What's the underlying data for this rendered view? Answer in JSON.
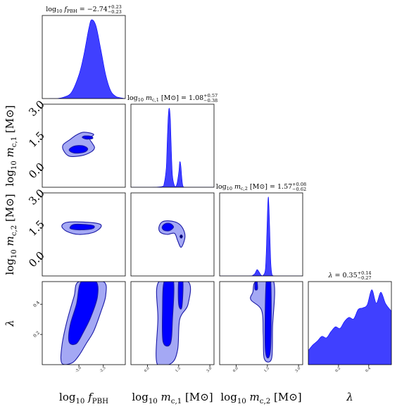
{
  "chart_data": {
    "type": "corner",
    "fill_color": "#0000ff",
    "inner_contour_color": "#0000ff",
    "outer_contour_color": "#a4a8f4",
    "contour_edge_color": "#1a1aa6",
    "parameters": [
      {
        "key": "f",
        "axis_label_base": "log",
        "axis_label_sub": "10",
        "axis_label_sym": "f",
        "axis_label_sym_sub": "PBH",
        "axis_label_unit": ""
      },
      {
        "key": "mc1",
        "axis_label_base": "log",
        "axis_label_sub": "10",
        "axis_label_sym": "m",
        "axis_label_sym_sub": "c,1",
        "axis_label_unit": "[M⊙]"
      },
      {
        "key": "mc2",
        "axis_label_base": "log",
        "axis_label_sub": "10",
        "axis_label_sym": "m",
        "axis_label_sym_sub": "c,2",
        "axis_label_unit": "[M⊙]"
      },
      {
        "key": "lam",
        "axis_label_base": "",
        "axis_label_sub": "",
        "axis_label_sym": "λ",
        "axis_label_sym_sub": "",
        "axis_label_unit": ""
      }
    ],
    "titles": [
      {
        "lhs": "log10 fPBH",
        "median": "−2.74",
        "plus": "+0.23",
        "minus": "−0.23"
      },
      {
        "lhs": "log10 mc,1 [M⊙]",
        "median": "1.08",
        "plus": "+0.57",
        "minus": "−0.38"
      },
      {
        "lhs": "log10 mc,2 [M⊙]",
        "median": "1.57",
        "plus": "+0.08",
        "minus": "−0.62"
      },
      {
        "lhs": "λ",
        "median": "0.35",
        "plus": "+0.14",
        "minus": "−0.27"
      }
    ],
    "y_tick_labels_mass": [
      "3.0",
      "1.5",
      "0.0"
    ],
    "lambda_y_tick_labels": [
      "0.4",
      "0.2"
    ],
    "x_tick_labels": {
      "f": [
        "-3.0",
        "-2.5"
      ],
      "mc1": [
        "0.0",
        "1.5",
        "3.0"
      ],
      "mc2": [
        "0.0",
        "1.5",
        "3.0"
      ],
      "lam": [
        "0.2",
        "0.4"
      ]
    },
    "ranges": {
      "f": [
        -3.75,
        -2.05
      ],
      "mc1": [
        -0.8,
        3.2
      ],
      "mc2": [
        -0.8,
        3.2
      ],
      "lam": [
        0.0,
        0.55
      ]
    },
    "marginal_f": {
      "x": [
        -3.6,
        -3.45,
        -3.3,
        -3.15,
        -3.0,
        -2.9,
        -2.8,
        -2.74,
        -2.65,
        -2.55,
        -2.45,
        -2.35,
        -2.25,
        -2.15,
        -2.05
      ],
      "y": [
        0.0,
        0.0,
        0.02,
        0.08,
        0.3,
        0.55,
        0.88,
        1.0,
        0.92,
        0.62,
        0.3,
        0.1,
        0.03,
        0.01,
        0.0
      ]
    },
    "marginal_mc1": {
      "x": [
        -0.8,
        0.2,
        0.7,
        0.8,
        0.9,
        0.95,
        1.0,
        1.05,
        1.1,
        1.15,
        1.2,
        1.3,
        1.4,
        1.5,
        1.55,
        1.6,
        1.65,
        1.7,
        1.8,
        2.2,
        3.2
      ],
      "y": [
        0.0,
        0.0,
        0.01,
        0.05,
        0.25,
        0.6,
        0.92,
        1.0,
        0.85,
        0.45,
        0.15,
        0.02,
        0.03,
        0.18,
        0.32,
        0.28,
        0.12,
        0.02,
        0.0,
        0.0,
        0.0
      ]
    },
    "marginal_mc2": {
      "x": [
        -0.8,
        0.6,
        0.8,
        0.9,
        1.0,
        1.1,
        1.2,
        1.3,
        1.4,
        1.45,
        1.5,
        1.55,
        1.6,
        1.65,
        1.7,
        1.8,
        2.2,
        3.2
      ],
      "y": [
        0.0,
        0.0,
        0.01,
        0.03,
        0.08,
        0.05,
        0.01,
        0.01,
        0.08,
        0.35,
        0.8,
        1.0,
        0.7,
        0.25,
        0.05,
        0.0,
        0.0,
        0.0
      ]
    },
    "marginal_lam": {
      "x": [
        0.0,
        0.03,
        0.06,
        0.09,
        0.12,
        0.15,
        0.18,
        0.21,
        0.24,
        0.27,
        0.3,
        0.33,
        0.36,
        0.39,
        0.42,
        0.45,
        0.48,
        0.51,
        0.54,
        0.55
      ],
      "y": [
        0.18,
        0.25,
        0.3,
        0.36,
        0.34,
        0.42,
        0.48,
        0.46,
        0.55,
        0.6,
        0.58,
        0.7,
        0.72,
        0.76,
        0.95,
        0.78,
        0.92,
        0.78,
        0.7,
        0.68
      ]
    },
    "contours": {
      "mc1_vs_f": [
        {
          "level": "outer",
          "points": [
            [
              -3.32,
              1.0
            ],
            [
              -3.2,
              0.7
            ],
            [
              -2.95,
              0.72
            ],
            [
              -2.75,
              0.9
            ],
            [
              -2.68,
              1.1
            ],
            [
              -2.72,
              1.3
            ],
            [
              -2.78,
              1.55
            ],
            [
              -2.7,
              1.75
            ],
            [
              -2.9,
              1.85
            ],
            [
              -3.05,
              1.72
            ],
            [
              -3.18,
              1.5
            ],
            [
              -3.32,
              1.25
            ]
          ]
        },
        {
          "level": "inner",
          "points": [
            [
              -3.2,
              1.0
            ],
            [
              -3.1,
              0.85
            ],
            [
              -2.9,
              0.88
            ],
            [
              -2.82,
              1.05
            ],
            [
              -2.92,
              1.2
            ],
            [
              -3.1,
              1.18
            ]
          ]
        },
        {
          "level": "inner",
          "points": [
            [
              -2.93,
              1.6
            ],
            [
              -2.85,
              1.52
            ],
            [
              -2.72,
              1.55
            ],
            [
              -2.75,
              1.65
            ],
            [
              -2.88,
              1.67
            ]
          ]
        }
      ],
      "mc2_vs_f": [
        {
          "level": "outer",
          "points": [
            [
              -3.35,
              1.6
            ],
            [
              -3.25,
              1.78
            ],
            [
              -2.95,
              1.8
            ],
            [
              -2.6,
              1.72
            ],
            [
              -2.55,
              1.55
            ],
            [
              -2.7,
              1.3
            ],
            [
              -3.0,
              1.2
            ],
            [
              -3.25,
              1.35
            ]
          ]
        },
        {
          "level": "inner",
          "points": [
            [
              -3.18,
              1.55
            ],
            [
              -3.1,
              1.68
            ],
            [
              -2.9,
              1.68
            ],
            [
              -2.7,
              1.62
            ],
            [
              -2.72,
              1.48
            ],
            [
              -2.95,
              1.42
            ],
            [
              -3.15,
              1.46
            ]
          ]
        }
      ],
      "mc2_vs_mc1": [
        {
          "level": "outer",
          "points": [
            [
              0.55,
              1.55
            ],
            [
              0.7,
              1.8
            ],
            [
              1.05,
              1.85
            ],
            [
              1.45,
              1.75
            ],
            [
              1.72,
              1.45
            ],
            [
              1.8,
              1.05
            ],
            [
              1.62,
              0.58
            ],
            [
              1.45,
              0.9
            ],
            [
              1.3,
              1.25
            ],
            [
              0.95,
              1.2
            ],
            [
              0.62,
              1.3
            ]
          ]
        },
        {
          "level": "inner",
          "points": [
            [
              0.7,
              1.55
            ],
            [
              0.85,
              1.72
            ],
            [
              1.1,
              1.72
            ],
            [
              1.25,
              1.55
            ],
            [
              1.05,
              1.38
            ],
            [
              0.8,
              1.4
            ]
          ]
        },
        {
          "level": "inner",
          "points": [
            [
              1.56,
              1.1
            ],
            [
              1.62,
              1.18
            ],
            [
              1.68,
              1.1
            ],
            [
              1.62,
              1.02
            ]
          ]
        }
      ],
      "lam_vs_f": [
        {
          "level": "outer",
          "points": [
            [
              -3.35,
              0.01
            ],
            [
              -3.15,
              0.01
            ],
            [
              -3.0,
              0.06
            ],
            [
              -2.85,
              0.14
            ],
            [
              -2.7,
              0.22
            ],
            [
              -2.55,
              0.35
            ],
            [
              -2.45,
              0.46
            ],
            [
              -2.5,
              0.55
            ],
            [
              -3.0,
              0.55
            ],
            [
              -3.1,
              0.45
            ],
            [
              -3.25,
              0.28
            ],
            [
              -3.35,
              0.12
            ]
          ]
        },
        {
          "level": "inner",
          "points": [
            [
              -3.2,
              0.15
            ],
            [
              -3.05,
              0.14
            ],
            [
              -2.9,
              0.22
            ],
            [
              -2.75,
              0.32
            ],
            [
              -2.62,
              0.45
            ],
            [
              -2.65,
              0.55
            ],
            [
              -2.95,
              0.55
            ],
            [
              -3.05,
              0.4
            ],
            [
              -3.18,
              0.26
            ]
          ]
        }
      ],
      "lam_vs_mc1": [
        {
          "level": "outer",
          "points": [
            [
              0.45,
              0.01
            ],
            [
              1.15,
              0.01
            ],
            [
              1.45,
              0.1
            ],
            [
              1.55,
              0.3
            ],
            [
              1.95,
              0.4
            ],
            [
              1.95,
              0.55
            ],
            [
              0.55,
              0.55
            ],
            [
              0.5,
              0.3
            ]
          ]
        },
        {
          "level": "inner",
          "points": [
            [
              0.75,
              0.15
            ],
            [
              1.1,
              0.14
            ],
            [
              1.2,
              0.3
            ],
            [
              1.25,
              0.55
            ],
            [
              0.8,
              0.55
            ],
            [
              0.72,
              0.35
            ]
          ]
        },
        {
          "level": "inner",
          "points": [
            [
              1.5,
              0.4
            ],
            [
              1.65,
              0.38
            ],
            [
              1.7,
              0.55
            ],
            [
              1.5,
              0.55
            ]
          ]
        }
      ],
      "lam_vs_mc2": [
        {
          "level": "outer",
          "points": [
            [
              0.7,
              0.43
            ],
            [
              0.8,
              0.48
            ],
            [
              0.95,
              0.55
            ],
            [
              1.8,
              0.55
            ],
            [
              1.75,
              0.25
            ],
            [
              1.7,
              0.04
            ],
            [
              1.35,
              0.04
            ],
            [
              1.3,
              0.2
            ],
            [
              1.22,
              0.36
            ]
          ]
        },
        {
          "level": "inner",
          "points": [
            [
              1.4,
              0.1
            ],
            [
              1.65,
              0.1
            ],
            [
              1.66,
              0.55
            ],
            [
              1.44,
              0.55
            ]
          ]
        },
        {
          "level": "inner",
          "points": [
            [
              0.9,
              0.5
            ],
            [
              1.02,
              0.5
            ],
            [
              1.0,
              0.55
            ],
            [
              0.92,
              0.55
            ]
          ]
        }
      ]
    }
  }
}
